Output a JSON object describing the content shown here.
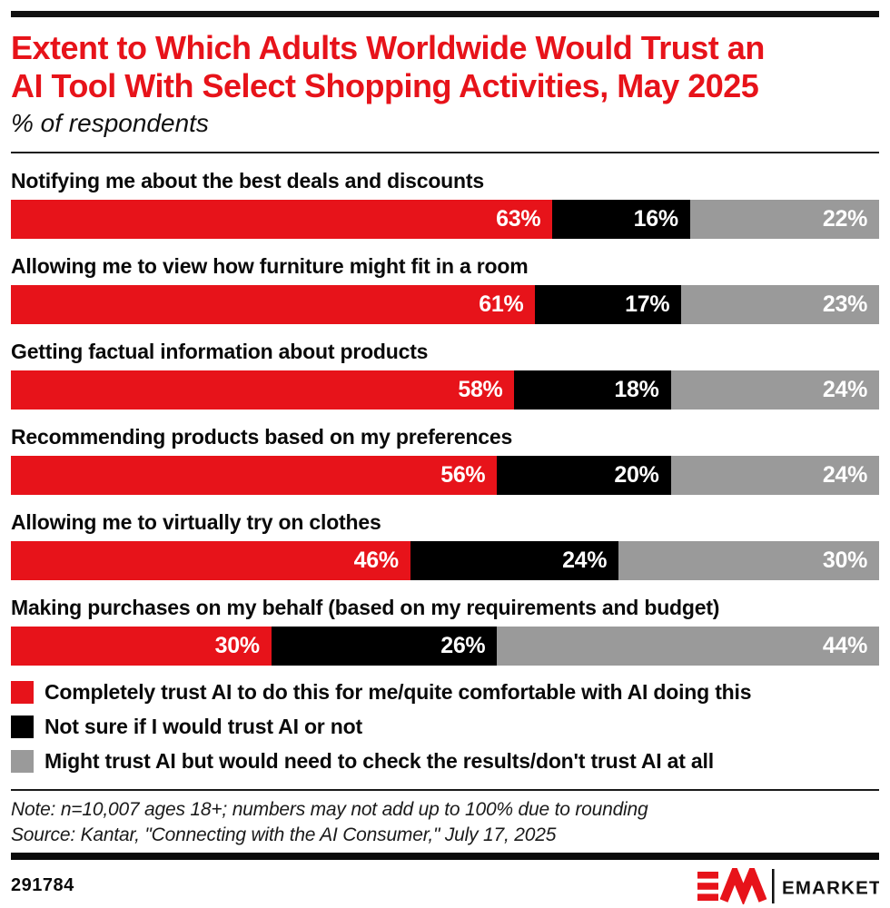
{
  "header": {
    "title": "Extent to Which Adults Worldwide Would Trust an\nAI Tool With Select Shopping Activities, May 2025",
    "subtitle": "% of respondents"
  },
  "chart_data": {
    "type": "bar",
    "orientation": "horizontal",
    "stacked": true,
    "title": "Extent to Which Adults Worldwide Would Trust an AI Tool With Select Shopping Activities, May 2025",
    "subtitle": "% of respondents",
    "value_suffix": "%",
    "legend_position": "bottom",
    "categories": [
      "Notifying me about the best deals and discounts",
      "Allowing me to view how furniture might fit in a room",
      "Getting factual information about products",
      "Recommending products based on my preferences",
      "Allowing me to virtually try on clothes",
      "Making purchases on my behalf (based on my requirements and budget)"
    ],
    "series": [
      {
        "name": "Completely trust AI to do this for me/quite comfortable with AI doing this",
        "color": "#e7131a",
        "values": [
          63,
          61,
          58,
          56,
          46,
          30
        ]
      },
      {
        "name": "Not sure if I would trust AI or not",
        "color": "#000000",
        "values": [
          16,
          17,
          18,
          20,
          24,
          26
        ]
      },
      {
        "name": "Might trust AI but would need to check the results/don't trust AI at all",
        "color": "#9a9a9a",
        "values": [
          22,
          23,
          24,
          24,
          30,
          44
        ]
      }
    ]
  },
  "notes": {
    "note": "Note: n=10,007 ages 18+; numbers may not add up to 100% due to rounding",
    "source": "Source: Kantar, \"Connecting with the AI Consumer,\" July 17, 2025"
  },
  "footer": {
    "chart_id": "291784",
    "logo_text": "EMARKETER",
    "logo_red": "#e7131a"
  }
}
